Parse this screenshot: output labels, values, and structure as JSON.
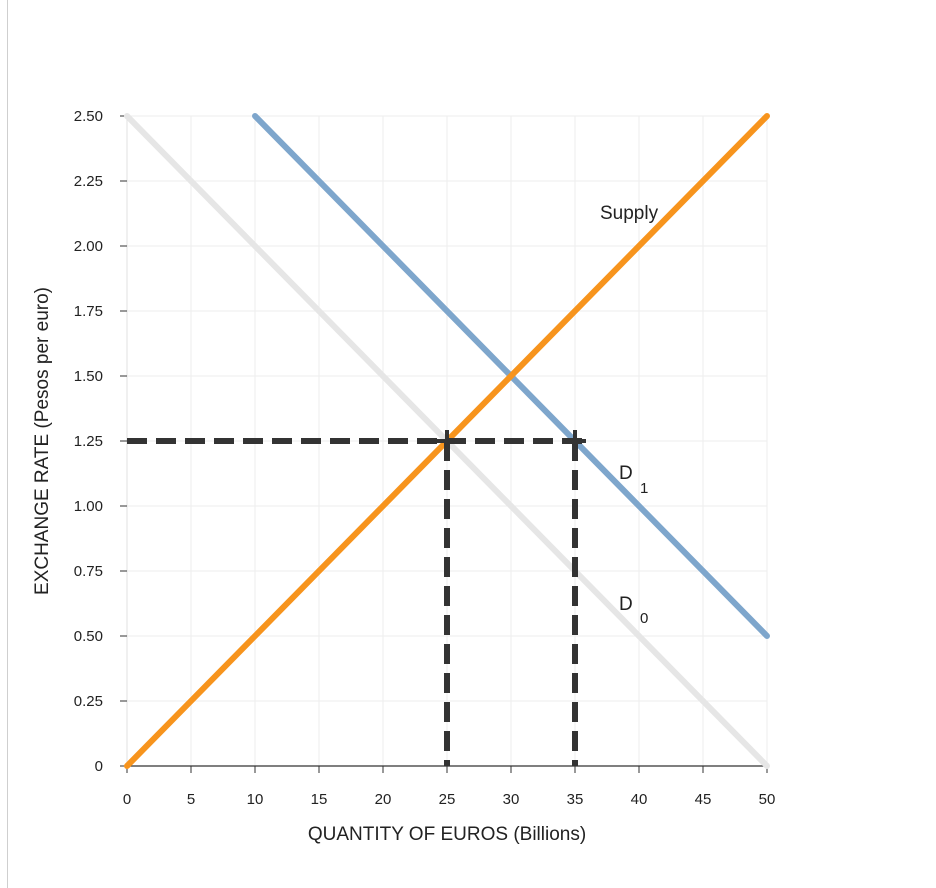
{
  "chart_data": {
    "type": "line",
    "xlabel": "QUANTITY OF EUROS (Billions)",
    "ylabel": "EXCHANGE RATE (Pesos per euro)",
    "xlim": [
      0,
      50
    ],
    "ylim": [
      0,
      2.5
    ],
    "x_ticks": [
      "0",
      "5",
      "10",
      "15",
      "20",
      "25",
      "30",
      "35",
      "40",
      "45",
      "50"
    ],
    "y_ticks": [
      "0",
      "0.25",
      "0.50",
      "0.75",
      "1.00",
      "1.25",
      "1.50",
      "1.75",
      "2.00",
      "2.25",
      "2.50"
    ],
    "grid": true,
    "series": [
      {
        "name": "Supply",
        "label": "Supply",
        "color": "#f7941d",
        "points": [
          [
            0,
            0
          ],
          [
            50,
            2.5
          ]
        ]
      },
      {
        "name": "D1",
        "label": "D",
        "subscript": "1",
        "color": "#7ea6cc",
        "points": [
          [
            10,
            2.5
          ],
          [
            50,
            0.5
          ]
        ]
      },
      {
        "name": "D0",
        "label": "D",
        "subscript": "0",
        "color": "#e6e6e6",
        "points": [
          [
            0,
            2.5
          ],
          [
            50,
            0
          ]
        ]
      }
    ],
    "reference_lines": {
      "color": "#333333",
      "horizontal": {
        "y": 1.25,
        "x_from": 0,
        "x_to": 35
      },
      "vertical": [
        {
          "x": 25,
          "y_from": 0,
          "y_to": 1.25
        },
        {
          "x": 35,
          "y_from": 0,
          "y_to": 1.25
        }
      ],
      "markers": [
        [
          25,
          1.25
        ],
        [
          35,
          1.25
        ]
      ]
    }
  }
}
